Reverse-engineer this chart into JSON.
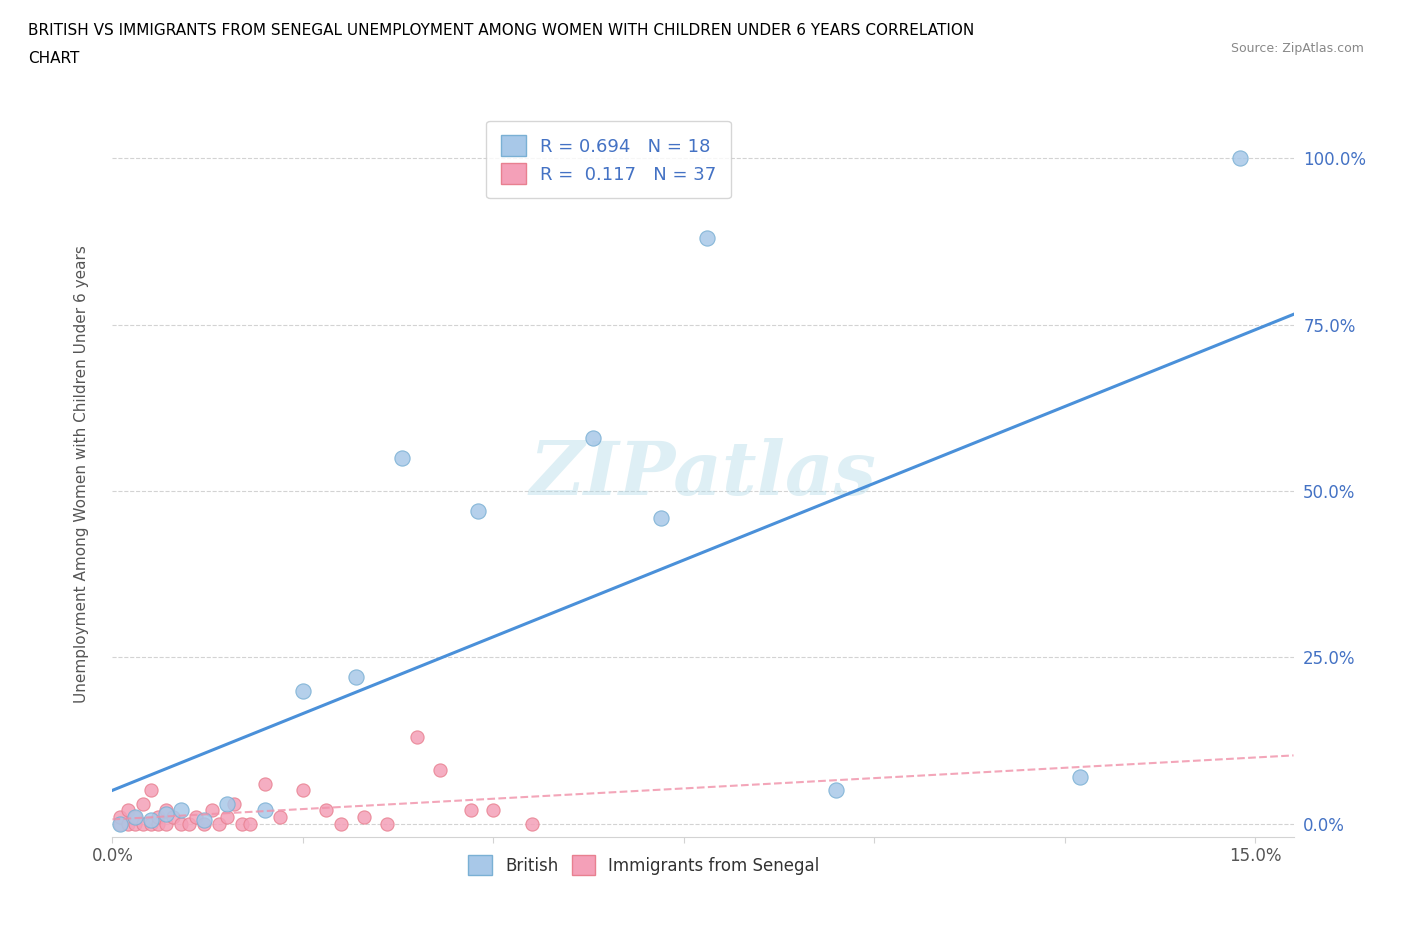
{
  "title_line1": "BRITISH VS IMMIGRANTS FROM SENEGAL UNEMPLOYMENT AMONG WOMEN WITH CHILDREN UNDER 6 YEARS CORRELATION",
  "title_line2": "CHART",
  "source_text": "Source: ZipAtlas.com",
  "ylabel": "Unemployment Among Women with Children Under 6 years",
  "xlim": [
    0.0,
    0.155
  ],
  "ylim": [
    -0.02,
    1.07
  ],
  "british_R": 0.694,
  "british_N": 18,
  "senegal_R": 0.117,
  "senegal_N": 37,
  "british_color": "#a8c8e8",
  "british_edge_color": "#7ab0d4",
  "senegal_color": "#f4a0b8",
  "senegal_edge_color": "#e88090",
  "british_line_color": "#4a90d9",
  "senegal_line_color": "#f090a8",
  "legend_color": "#4472c4",
  "watermark": "ZIPatlas",
  "british_x": [
    0.001,
    0.003,
    0.005,
    0.007,
    0.009,
    0.012,
    0.015,
    0.02,
    0.025,
    0.032,
    0.038,
    0.048,
    0.063,
    0.072,
    0.078,
    0.095,
    0.127,
    0.148
  ],
  "british_y": [
    0.0,
    0.01,
    0.005,
    0.015,
    0.02,
    0.005,
    0.03,
    0.02,
    0.2,
    0.22,
    0.55,
    0.47,
    0.58,
    0.46,
    0.88,
    0.05,
    0.07,
    1.0
  ],
  "senegal_x": [
    0.001,
    0.001,
    0.002,
    0.002,
    0.003,
    0.003,
    0.004,
    0.004,
    0.005,
    0.005,
    0.006,
    0.006,
    0.007,
    0.007,
    0.008,
    0.009,
    0.01,
    0.011,
    0.012,
    0.013,
    0.014,
    0.015,
    0.016,
    0.017,
    0.018,
    0.02,
    0.022,
    0.025,
    0.028,
    0.03,
    0.033,
    0.036,
    0.04,
    0.043,
    0.047,
    0.05,
    0.055
  ],
  "senegal_y": [
    0.0,
    0.01,
    0.0,
    0.02,
    0.0,
    0.01,
    0.0,
    0.03,
    0.05,
    0.0,
    0.0,
    0.01,
    0.0,
    0.02,
    0.01,
    0.0,
    0.0,
    0.01,
    0.0,
    0.02,
    0.0,
    0.01,
    0.03,
    0.0,
    0.0,
    0.06,
    0.01,
    0.05,
    0.02,
    0.0,
    0.01,
    0.0,
    0.13,
    0.08,
    0.02,
    0.02,
    0.0
  ]
}
